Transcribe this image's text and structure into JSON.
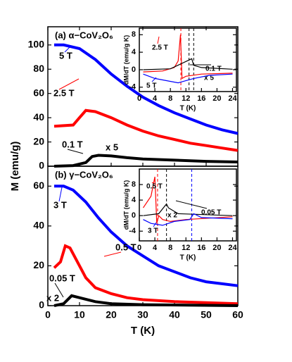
{
  "chart_data": [
    {
      "type": "line",
      "annotation": "(a) α−CoV₂O₆",
      "ylabel": "M (emu/g)",
      "xlim": [
        0,
        60
      ],
      "ylim": [
        0,
        115
      ],
      "yticks": [
        0,
        20,
        40,
        60,
        80,
        100
      ],
      "series": [
        {
          "name": "5 T",
          "color": "#0000ff",
          "x": [
            2,
            5,
            10,
            15,
            20,
            25,
            30,
            35,
            40,
            45,
            50,
            55,
            60
          ],
          "values": [
            100,
            100,
            97,
            88,
            76,
            66,
            57,
            50,
            44,
            39,
            34,
            30,
            27
          ]
        },
        {
          "name": "2.5 T",
          "color": "#ff0000",
          "x": [
            2,
            8,
            10,
            12,
            15,
            20,
            25,
            30,
            35,
            40,
            45,
            50,
            55,
            60
          ],
          "values": [
            33,
            34,
            40,
            46,
            45,
            40,
            34,
            29,
            25,
            22,
            19,
            17,
            15,
            13
          ]
        },
        {
          "name": "0.1 T",
          "multiplier": "x 5",
          "color": "#000000",
          "x": [
            2,
            8,
            12,
            14,
            16,
            20,
            25,
            30,
            40,
            50,
            60
          ],
          "values": [
            0,
            0.5,
            3,
            8,
            9,
            8.5,
            7,
            6,
            5,
            4,
            3.5
          ]
        }
      ]
    },
    {
      "type": "line",
      "annotation": "(b) γ−CoV₂O₆",
      "xlabel": "T (K)",
      "xlim": [
        0,
        60
      ],
      "xticks": [
        0,
        10,
        20,
        30,
        40,
        50,
        60
      ],
      "ylim": [
        0,
        70
      ],
      "yticks": [
        0,
        20,
        40,
        60
      ],
      "series": [
        {
          "name": "3 T",
          "color": "#0000ff",
          "x": [
            2,
            5,
            8,
            12,
            16,
            20,
            25,
            30,
            35,
            40,
            45,
            50,
            55,
            60
          ],
          "values": [
            60,
            60,
            58,
            52,
            44,
            37,
            30,
            25,
            20,
            17,
            14,
            12,
            11,
            10
          ]
        },
        {
          "name": "0.5 T",
          "color": "#ff0000",
          "x": [
            2,
            4,
            5.5,
            7,
            10,
            12,
            15,
            20,
            25,
            30,
            40,
            50,
            60
          ],
          "values": [
            19,
            22,
            30,
            29,
            20,
            14,
            9,
            6,
            4,
            3,
            2,
            1.5,
            1
          ]
        },
        {
          "name": "0.05 T",
          "multiplier": "x 2",
          "color": "#000000",
          "x": [
            2,
            5,
            7.5,
            10,
            15,
            20,
            30,
            60
          ],
          "values": [
            0,
            1,
            5,
            4,
            2,
            1,
            0.5,
            0
          ]
        }
      ]
    },
    {
      "type": "line",
      "xlabel": "T (K)",
      "ylabel": "dM/dT (emu/g K)",
      "xlim": [
        0,
        25
      ],
      "xticks": [
        0,
        4,
        8,
        12,
        16,
        20,
        24
      ],
      "ylim": [
        -5,
        9.5
      ],
      "yticks": [
        -4,
        0,
        4,
        8
      ],
      "dashed_lines": [
        {
          "value": 10.7,
          "color": "#ff0000"
        },
        {
          "value": 12.8,
          "color": "#000000"
        },
        {
          "value": 14,
          "color": "#000000"
        }
      ],
      "series": [
        {
          "name": "2.5 T",
          "color": "#ff0000",
          "x": [
            1,
            6,
            9,
            10,
            10.6,
            11,
            12,
            16,
            24
          ],
          "values": [
            -0.5,
            -0.3,
            0.5,
            2,
            8,
            -2,
            -1.5,
            -1,
            -0.8
          ]
        },
        {
          "name": "0.1 T",
          "multiplier": "x 5",
          "color": "#000000",
          "x": [
            1,
            8,
            13.5,
            14,
            16,
            24
          ],
          "values": [
            0,
            0.2,
            2.5,
            1,
            0.5,
            0.1
          ]
        },
        {
          "name": "5 T",
          "color": "#0000ff",
          "x": [
            1,
            4,
            7,
            10,
            14,
            18,
            24
          ],
          "values": [
            -1,
            -2,
            -2.5,
            -3,
            -2,
            -1.3,
            -1
          ]
        }
      ]
    },
    {
      "type": "line",
      "xlabel": "T (K)",
      "ylabel": "dM/dT (emu/g K)",
      "xlim": [
        0,
        25
      ],
      "xticks": [
        0,
        4,
        8,
        12,
        16,
        20,
        24
      ],
      "ylim": [
        -6.5,
        12
      ],
      "yticks": [
        -4,
        0,
        4,
        8
      ],
      "dashed_lines": [
        {
          "value": 4.7,
          "color": "#ff0000"
        },
        {
          "value": 7,
          "color": "#000000"
        },
        {
          "value": 13.5,
          "color": "#0000ff"
        }
      ],
      "series": [
        {
          "name": "0.5 T",
          "color": "#ff0000",
          "x": [
            1,
            3,
            4,
            4.5,
            5,
            6,
            8,
            12,
            24
          ],
          "values": [
            2,
            5,
            10,
            -2,
            0,
            -1,
            -1.5,
            -1,
            -0.3
          ]
        },
        {
          "name": "0.05 T",
          "multiplier": "x 2",
          "color": "#000000",
          "x": [
            1,
            5,
            7,
            7.5,
            10,
            24
          ],
          "values": [
            0,
            0.5,
            3,
            2,
            0.5,
            0
          ]
        },
        {
          "name": "3 T",
          "color": "#0000ff",
          "x": [
            1,
            3,
            6,
            9,
            13,
            14,
            16,
            24
          ],
          "values": [
            -1,
            -2,
            -2.5,
            -1.5,
            -1,
            0.5,
            -0.5,
            -0.8
          ]
        }
      ]
    }
  ]
}
